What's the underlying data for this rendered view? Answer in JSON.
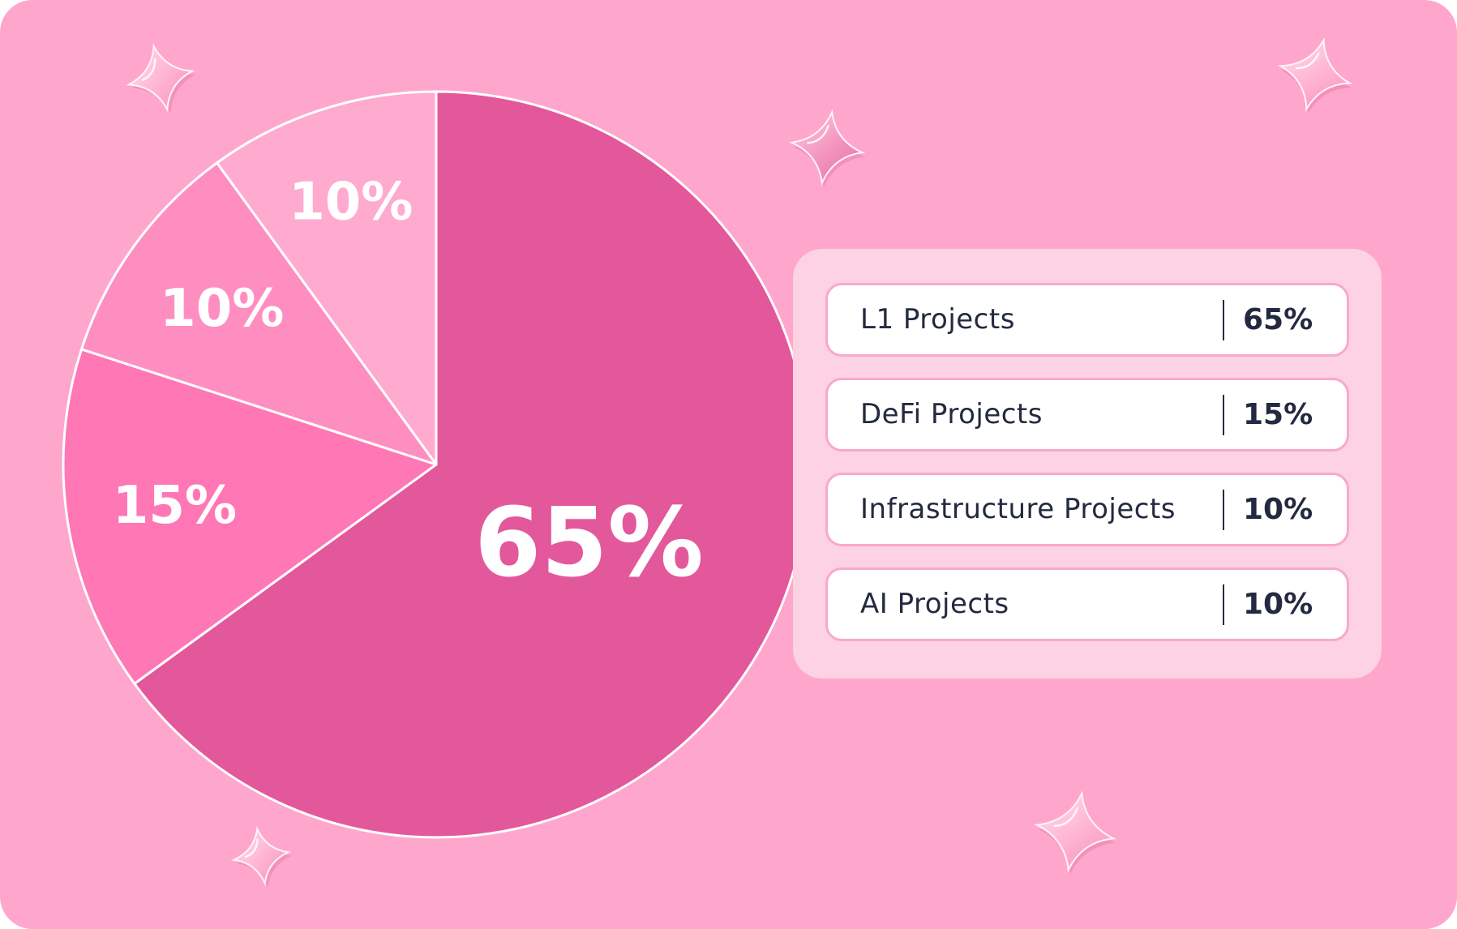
{
  "colors": {
    "background": "#ffa6cc",
    "slice_l1": "#e3589a",
    "slice_defi": "#ff77b4",
    "slice_infra": "#ff8ec0",
    "slice_ai": "#ffaacf",
    "legend_panel": "#fdd2e3",
    "legend_text": "#232a40"
  },
  "chart_data": {
    "type": "pie",
    "categories": [
      "L1 Projects",
      "DeFi Projects",
      "Infrastructure Projects",
      "AI Projects"
    ],
    "values": [
      65,
      15,
      10,
      10
    ],
    "slice_labels": [
      "65%",
      "15%",
      "10%",
      "10%"
    ],
    "start": "12 o'clock",
    "direction": "clockwise",
    "legend": "right"
  },
  "legend": {
    "items": [
      {
        "label": "L1 Projects",
        "value": "65%"
      },
      {
        "label": "DeFi Projects",
        "value": "15%"
      },
      {
        "label": "Infrastructure Projects",
        "value": "10%"
      },
      {
        "label": "AI Projects",
        "value": "10%"
      }
    ]
  },
  "decorations": {
    "icons": [
      "sparkle-icon",
      "sparkle-icon",
      "sparkle-icon",
      "sparkle-icon",
      "sparkle-icon"
    ]
  }
}
